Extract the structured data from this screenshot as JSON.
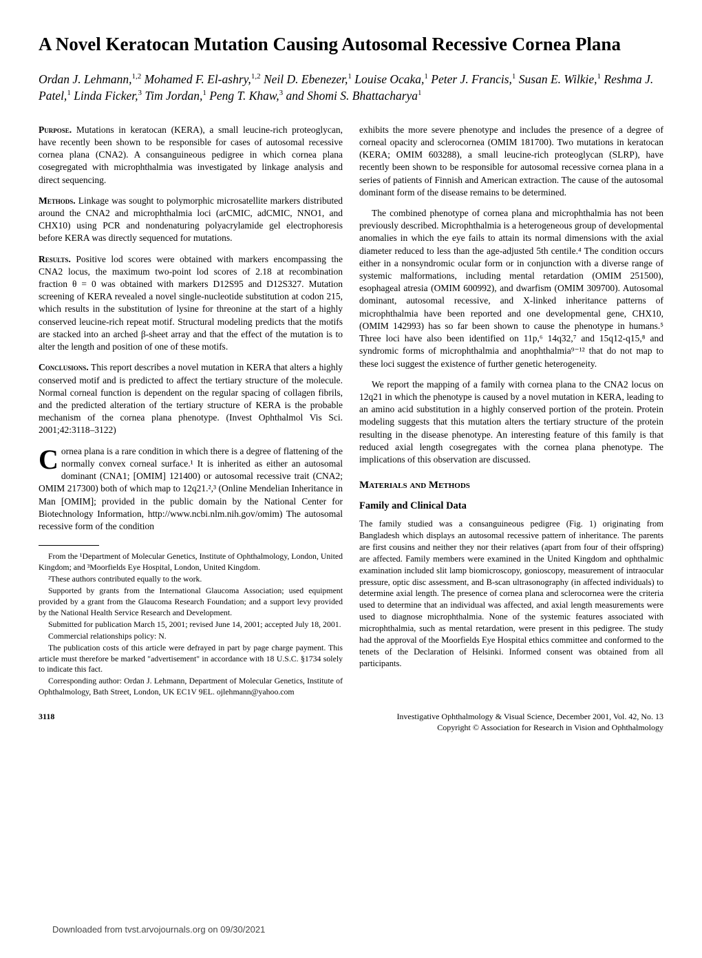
{
  "title": "A Novel Keratocan Mutation Causing Autosomal Recessive Cornea Plana",
  "authors_html": "Ordan J. Lehmann,<sup>1,2</sup> Mohamed F. El-ashry,<sup>1,2</sup> Neil D. Ebenezer,<sup>1</sup> Louise Ocaka,<sup>1</sup> Peter J. Francis,<sup>1</sup> Susan E. Wilkie,<sup>1</sup> Reshma J. Patel,<sup>1</sup> Linda Ficker,<sup>3</sup> Tim Jordan,<sup>1</sup> Peng T. Khaw,<sup>3</sup> and Shomi S. Bhattacharya<sup>1</sup>",
  "abstract": {
    "purpose_label": "Purpose.",
    "purpose": " Mutations in keratocan (KERA), a small leucine-rich proteoglycan, have recently been shown to be responsible for cases of autosomal recessive cornea plana (CNA2). A consanguineous pedigree in which cornea plana cosegregated with microphthalmia was investigated by linkage analysis and direct sequencing.",
    "methods_label": "Methods.",
    "methods": " Linkage was sought to polymorphic microsatellite markers distributed around the CNA2 and microphthalmia loci (arCMIC, adCMIC, NNO1, and CHX10) using PCR and nondenaturing polyacrylamide gel electrophoresis before KERA was directly sequenced for mutations.",
    "results_label": "Results.",
    "results": " Positive lod scores were obtained with markers encompassing the CNA2 locus, the maximum two-point lod scores of 2.18 at recombination fraction θ = 0 was obtained with markers D12S95 and D12S327. Mutation screening of KERA revealed a novel single-nucleotide substitution at codon 215, which results in the substitution of lysine for threonine at the start of a highly conserved leucine-rich repeat motif. Structural modeling predicts that the motifs are stacked into an arched β-sheet array and that the effect of the mutation is to alter the length and position of one of these motifs.",
    "conclusions_label": "Conclusions.",
    "conclusions": " This report describes a novel mutation in KERA that alters a highly conserved motif and is predicted to affect the tertiary structure of the molecule. Normal corneal function is dependent on the regular spacing of collagen fibrils, and the predicted alteration of the tertiary structure of KERA is the probable mechanism of the cornea plana phenotype. (Invest Ophthalmol Vis Sci. 2001;42:3118–3122)"
  },
  "intro_first": "ornea plana is a rare condition in which there is a degree of flattening of the normally convex corneal surface.¹ It is inherited as either an autosomal dominant (CNA1; [OMIM] 121400) or autosomal recessive trait (CNA2; OMIM 217300) both of which map to 12q21.²,³ (Online Mendelian Inheritance in Man [OMIM]; provided in the public domain by the National Center for Biotechnology Information, http://www.ncbi.nlm.nih.gov/omim) The autosomal recessive form of the condition",
  "affiliations": {
    "p1": "From the ¹Department of Molecular Genetics, Institute of Ophthalmology, London, United Kingdom; and ³Moorfields Eye Hospital, London, United Kingdom.",
    "p2": "²These authors contributed equally to the work.",
    "p3": "Supported by grants from the International Glaucoma Association; used equipment provided by a grant from the Glaucoma Research Foundation; and a support levy provided by the National Health Service Research and Development.",
    "p4": "Submitted for publication March 15, 2001; revised June 14, 2001; accepted July 18, 2001.",
    "p5": "Commercial relationships policy: N.",
    "p6": "The publication costs of this article were defrayed in part by page charge payment. This article must therefore be marked \"advertisement\" in accordance with 18 U.S.C. §1734 solely to indicate this fact.",
    "p7": "Corresponding author: Ordan J. Lehmann, Department of Molecular Genetics, Institute of Ophthalmology, Bath Street, London, UK EC1V 9EL. ojlehmann@yahoo.com"
  },
  "col2": {
    "p1": "exhibits the more severe phenotype and includes the presence of a degree of corneal opacity and sclerocornea (OMIM 181700). Two mutations in keratocan (KERA; OMIM 603288), a small leucine-rich proteoglycan (SLRP), have recently been shown to be responsible for autosomal recessive cornea plana in a series of patients of Finnish and American extraction. The cause of the autosomal dominant form of the disease remains to be determined.",
    "p2": "The combined phenotype of cornea plana and microphthalmia has not been previously described. Microphthalmia is a heterogeneous group of developmental anomalies in which the eye fails to attain its normal dimensions with the axial diameter reduced to less than the age-adjusted 5th centile.⁴ The condition occurs either in a nonsyndromic ocular form or in conjunction with a diverse range of systemic malformations, including mental retardation (OMIM 251500), esophageal atresia (OMIM 600992), and dwarfism (OMIM 309700). Autosomal dominant, autosomal recessive, and X-linked inheritance patterns of microphthalmia have been reported and one developmental gene, CHX10, (OMIM 142993) has so far been shown to cause the phenotype in humans.⁵ Three loci have also been identified on 11p,⁶ 14q32,⁷ and 15q12-q15,⁸ and syndromic forms of microphthalmia and anophthalmia⁹⁻¹² that do not map to these loci suggest the existence of further genetic heterogeneity.",
    "p3": "We report the mapping of a family with cornea plana to the CNA2 locus on 12q21 in which the phenotype is caused by a novel mutation in KERA, leading to an amino acid substitution in a highly conserved portion of the protein. Protein modeling suggests that this mutation alters the tertiary structure of the protein resulting in the disease phenotype. An interesting feature of this family is that reduced axial length cosegregates with the cornea plana phenotype. The implications of this observation are discussed."
  },
  "materials_heading": "Materials and Methods",
  "family_heading": "Family and Clinical Data",
  "family_text": "The family studied was a consanguineous pedigree (Fig. 1) originating from Bangladesh which displays an autosomal recessive pattern of inheritance. The parents are first cousins and neither they nor their relatives (apart from four of their offspring) are affected. Family members were examined in the United Kingdom and ophthalmic examination included slit lamp biomicroscopy, gonioscopy, measurement of intraocular pressure, optic disc assessment, and B-scan ultrasonography (in affected individuals) to determine axial length. The presence of cornea plana and sclerocornea were the criteria used to determine that an individual was affected, and axial length measurements were used to diagnose microphthalmia. None of the systemic features associated with microphthalmia, such as mental retardation, were present in this pedigree. The study had the approval of the Moorfields Eye Hospital ethics committee and conformed to the tenets of the Declaration of Helsinki. Informed consent was obtained from all participants.",
  "footer": {
    "page_number": "3118",
    "right_line1": "Investigative Ophthalmology & Visual Science, December 2001, Vol. 42, No. 13",
    "right_line2": "Copyright © Association for Research in Vision and Ophthalmology"
  },
  "download_note": "Downloaded from tvst.arvojournals.org on 09/30/2021"
}
